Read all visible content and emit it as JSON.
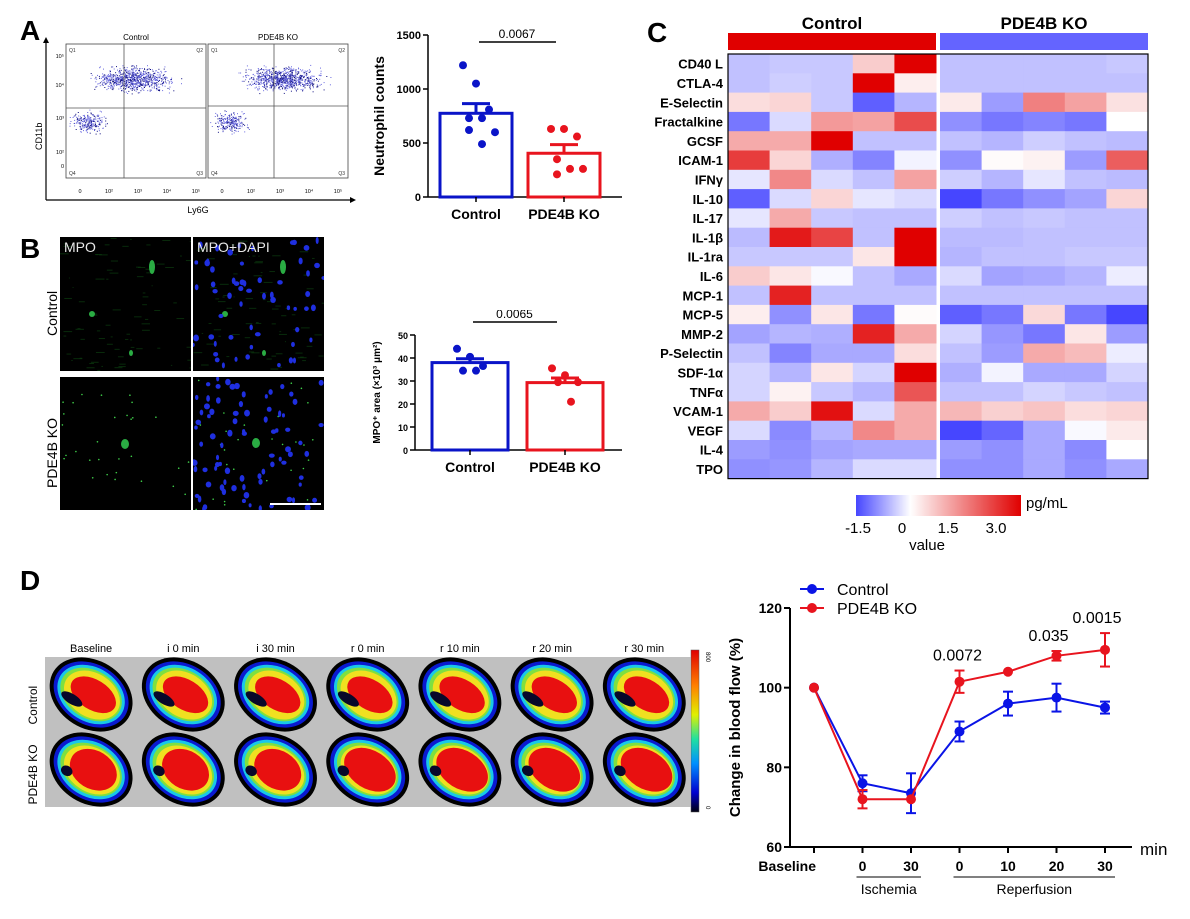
{
  "panels": {
    "A": {
      "letter": "A",
      "flow": {
        "plots": [
          {
            "title": "Control",
            "quadrants": [
              "Q1",
              "Q2",
              "Q3",
              "Q4"
            ]
          },
          {
            "title": "PDE4B KO",
            "quadrants": [
              "Q1",
              "Q2",
              "Q3",
              "Q4"
            ]
          }
        ],
        "xlabel": "Ly6G",
        "ylabel": "CD11b",
        "x_ticks": [
          "0",
          "10²",
          "10³",
          "10⁴",
          "10⁵"
        ],
        "y_ticks": [
          "10⁵",
          "10⁴",
          "10³",
          "10²",
          "0"
        ]
      }
    },
    "B": {
      "letter": "B",
      "images": {
        "col_labels": [
          "MPO",
          "MPO+DAPI"
        ],
        "row_labels": [
          "Control",
          "PDE4B KO"
        ]
      }
    },
    "C": {
      "letter": "C"
    },
    "D": {
      "letter": "D",
      "laser": {
        "col_labels": [
          "Baseline",
          "i 0 min",
          "i 30 min",
          "r 0 min",
          "r 10 min",
          "r 20 min",
          "r 30 min"
        ],
        "row_labels": [
          "Control",
          "PDE4B KO"
        ],
        "scale_max": "800",
        "scale_min": "0"
      }
    }
  },
  "chart_data": [
    {
      "id": "neutrophil-bar",
      "type": "bar",
      "title": "",
      "categories": [
        "Control",
        "PDE4B KO"
      ],
      "means": [
        775,
        405
      ],
      "sem": [
        90,
        80
      ],
      "points": [
        [
          1220,
          1050,
          810,
          730,
          730,
          600,
          620,
          490
        ],
        [
          630,
          630,
          560,
          350,
          260,
          260,
          210
        ]
      ],
      "colors": [
        "#0a14c8",
        "#e8141e"
      ],
      "xlabel": "",
      "ylabel": "Neutrophil counts",
      "ylim": [
        0,
        1500
      ],
      "yticks": [
        0,
        500,
        1000,
        1500
      ],
      "annotation": "0.0067"
    },
    {
      "id": "mpo-bar",
      "type": "bar",
      "title": "",
      "categories": [
        "Control",
        "PDE4B KO"
      ],
      "means": [
        38,
        29.3
      ],
      "sem": [
        1.7,
        2.0
      ],
      "points": [
        [
          44,
          40.5,
          36.5,
          34.5,
          34.5
        ],
        [
          35.5,
          32.5,
          29.5,
          29.5,
          21
        ]
      ],
      "colors": [
        "#0a14c8",
        "#e8141e"
      ],
      "xlabel": "",
      "ylabel": "MPO⁺ area (×10³ μm²)",
      "ylim": [
        0,
        50
      ],
      "yticks": [
        0,
        10,
        20,
        30,
        40,
        50
      ],
      "annotation": "0.0065"
    },
    {
      "id": "cytokine-heatmap",
      "type": "heatmap",
      "groups": [
        {
          "name": "Control",
          "color": "#e00000"
        },
        {
          "name": "PDE4B KO",
          "color": "#6464ff"
        }
      ],
      "rows": [
        "CD40 L",
        "CTLA-4",
        "E-Selectin",
        "Fractalkine",
        "GCSF",
        "ICAM-1",
        "IFNγ",
        "IL-10",
        "IL-17",
        "IL-1β",
        "IL-1ra",
        "IL-6",
        "MCP-1",
        "MCP-5",
        "MMP-2",
        "P-Selectin",
        "SDF-1α",
        "TNFα",
        "VCAM-1",
        "VEGF",
        "IL-4",
        "TPO"
      ],
      "values": [
        [
          -0.5,
          -0.45,
          -0.45,
          0.6,
          3.0,
          -0.5,
          -0.5,
          -0.5,
          -0.5,
          -0.45
        ],
        [
          -0.5,
          -0.4,
          -0.45,
          3.0,
          0.2,
          -0.5,
          -0.5,
          -0.5,
          -0.5,
          -0.5
        ],
        [
          0.4,
          0.5,
          -0.45,
          -1.3,
          -0.6,
          0.25,
          -0.8,
          1.5,
          1.1,
          0.35
        ],
        [
          -1.1,
          -0.3,
          1.2,
          1.1,
          2.1,
          -0.9,
          -1.1,
          -1.0,
          -1.1,
          0.0
        ],
        [
          1.0,
          1.0,
          3.0,
          -0.5,
          -0.5,
          -0.5,
          -0.6,
          -0.4,
          -0.5,
          -0.55
        ],
        [
          2.3,
          0.5,
          -0.65,
          -1.0,
          -0.1,
          -0.9,
          0.05,
          0.15,
          -0.8,
          1.9
        ],
        [
          -0.2,
          1.4,
          -0.3,
          -0.5,
          1.1,
          -0.4,
          -0.6,
          -0.2,
          -0.5,
          -0.55
        ],
        [
          -1.3,
          -0.3,
          0.5,
          -0.2,
          -0.3,
          -1.6,
          -1.1,
          -0.9,
          -0.75,
          0.5
        ],
        [
          -0.2,
          1.0,
          -0.45,
          -0.5,
          -0.5,
          -0.4,
          -0.5,
          -0.45,
          -0.5,
          -0.5
        ],
        [
          -0.55,
          2.7,
          2.2,
          -0.5,
          3.0,
          -0.55,
          -0.55,
          -0.5,
          -0.5,
          -0.5
        ],
        [
          -0.45,
          -0.45,
          -0.45,
          0.3,
          3.0,
          -0.6,
          -0.5,
          -0.5,
          -0.45,
          -0.45
        ],
        [
          0.6,
          0.3,
          -0.05,
          -0.5,
          -0.7,
          -0.3,
          -0.75,
          -0.7,
          -0.6,
          -0.15
        ],
        [
          -0.5,
          2.6,
          -0.5,
          -0.5,
          -0.5,
          -0.5,
          -0.5,
          -0.5,
          -0.5,
          -0.5
        ],
        [
          0.2,
          -0.9,
          0.3,
          -1.1,
          0.05,
          -1.3,
          -1.1,
          0.45,
          -1.1,
          -1.6
        ],
        [
          -0.75,
          -0.6,
          -0.65,
          2.6,
          1.0,
          -0.35,
          -0.85,
          -1.1,
          0.3,
          -0.8
        ],
        [
          -0.5,
          -1.0,
          -0.7,
          -0.7,
          0.4,
          -0.5,
          -0.8,
          1.0,
          0.8,
          -0.15
        ],
        [
          -0.35,
          -0.6,
          0.3,
          -0.35,
          3.0,
          -0.65,
          -0.1,
          -0.7,
          -0.7,
          -0.35
        ],
        [
          -0.35,
          0.15,
          -0.45,
          -0.6,
          2.0,
          -0.5,
          -0.5,
          -0.35,
          -0.45,
          -0.5
        ],
        [
          1.0,
          0.6,
          2.8,
          -0.3,
          1.0,
          0.85,
          0.55,
          0.7,
          0.4,
          0.5
        ],
        [
          -0.3,
          -0.95,
          -0.6,
          1.4,
          1.0,
          -1.5,
          -1.25,
          -0.7,
          -0.05,
          0.25
        ],
        [
          -0.8,
          -0.9,
          -0.75,
          -0.7,
          -0.7,
          -0.8,
          -0.9,
          -0.7,
          -0.95,
          0.0
        ],
        [
          -0.9,
          -0.85,
          -0.6,
          -0.3,
          -0.3,
          -0.9,
          -0.9,
          -0.7,
          -0.9,
          -0.7
        ]
      ],
      "colorbar": {
        "ticks": [
          "-1.5",
          "0",
          "1.5",
          "3.0"
        ],
        "range": [
          -1.5,
          3.0
        ],
        "unit": "pg/mL",
        "label": "value",
        "low": "#4646ff",
        "mid": "#ffffff",
        "high": "#e00000"
      }
    },
    {
      "id": "blood-flow-line",
      "type": "line",
      "title": "",
      "x": [
        "Baseline",
        "0",
        "30",
        "0",
        "10",
        "20",
        "30"
      ],
      "x_groups": [
        {
          "label": "Ischemia",
          "span": [
            1,
            2
          ]
        },
        {
          "label": "Reperfusion",
          "span": [
            3,
            6
          ]
        }
      ],
      "x_unit": "min",
      "series": [
        {
          "name": "Control",
          "color": "#0a14e6",
          "values": [
            100,
            76,
            73.5,
            89,
            96,
            97.5,
            95
          ],
          "err": [
            0,
            2,
            5,
            2.5,
            3,
            3.5,
            1.5
          ]
        },
        {
          "name": "PDE4B KO",
          "color": "#e8141e",
          "values": [
            100,
            72,
            72,
            101.5,
            104,
            108,
            109.5
          ],
          "err": [
            0,
            2.3,
            0,
            2.8,
            0,
            1.2,
            4.2
          ]
        }
      ],
      "annotations": [
        {
          "x_index": 3,
          "text": "0.0072"
        },
        {
          "x_index": 5,
          "text": "0.035"
        },
        {
          "x_index": 6,
          "text": "0.0015"
        }
      ],
      "ylabel": "Change in blood flow (%)",
      "ylim": [
        60,
        120
      ],
      "yticks": [
        60,
        80,
        100,
        120
      ],
      "legend": "top-left"
    }
  ]
}
